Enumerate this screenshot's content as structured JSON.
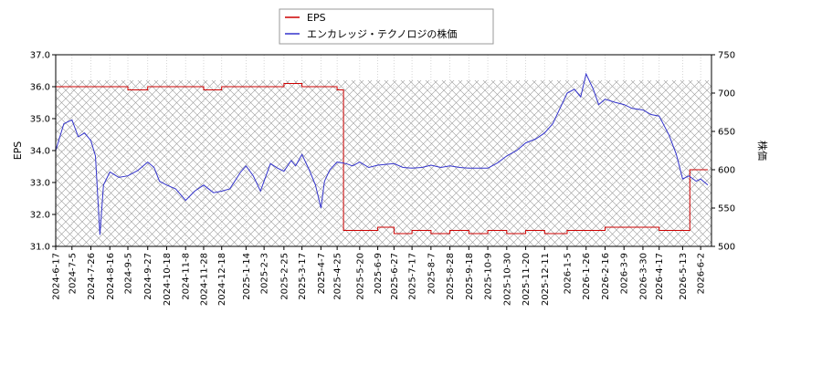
{
  "chart_data": {
    "type": "line",
    "title": "",
    "xlabel": "",
    "ylabel_left": "EPS",
    "ylabel_right": "株価",
    "ylim_left": [
      31.0,
      37.0
    ],
    "ylim_right": [
      500,
      750
    ],
    "yticks_left": [
      "31.0",
      "32.0",
      "33.0",
      "34.0",
      "35.0",
      "36.0",
      "37.0"
    ],
    "yticks_right": [
      "500",
      "550",
      "600",
      "650",
      "700",
      "750"
    ],
    "grid": true,
    "legend_position": "top-center",
    "x_ticks": [
      "2024-6-17",
      "2024-7-5",
      "2024-7-26",
      "2024-8-16",
      "2024-9-5",
      "2024-9-27",
      "2024-10-18",
      "2024-11-8",
      "2024-11-28",
      "2024-12-18",
      "2025-1-14",
      "2025-2-3",
      "2025-2-25",
      "2025-3-17",
      "2025-4-7",
      "2025-4-25",
      "2025-5-20",
      "2025-6-9",
      "2025-6-27",
      "2025-7-17",
      "2025-8-7",
      "2025-8-28",
      "2025-9-18",
      "2025-10-9",
      "2025-10-30",
      "2025-11-20",
      "2025-12-11",
      "2026-1-5",
      "2026-1-26",
      "2026-2-16",
      "2026-3-9",
      "2026-3-30",
      "2026-4-17",
      "2026-5-13",
      "2026-6-2"
    ],
    "series": [
      {
        "name": "EPS",
        "axis": "left",
        "color": "#cc0000",
        "points": [
          [
            "2024-6-17",
            36.0
          ],
          [
            "2024-7-5",
            36.0
          ],
          [
            "2024-7-26",
            36.0
          ],
          [
            "2024-8-16",
            36.0
          ],
          [
            "2024-9-5",
            35.9
          ],
          [
            "2024-9-27",
            36.0
          ],
          [
            "2024-10-18",
            36.0
          ],
          [
            "2024-11-8",
            36.0
          ],
          [
            "2024-11-28",
            35.9
          ],
          [
            "2024-12-18",
            36.0
          ],
          [
            "2025-1-14",
            36.0
          ],
          [
            "2025-2-3",
            36.0
          ],
          [
            "2025-2-25",
            36.1
          ],
          [
            "2025-3-17",
            36.0
          ],
          [
            "2025-4-7",
            36.0
          ],
          [
            "2025-4-25",
            35.9
          ],
          [
            "2025-5-1",
            35.9
          ],
          [
            "2025-5-2",
            31.5
          ],
          [
            "2025-5-20",
            31.5
          ],
          [
            "2025-6-9",
            31.6
          ],
          [
            "2025-6-27",
            31.4
          ],
          [
            "2025-7-17",
            31.5
          ],
          [
            "2025-8-7",
            31.4
          ],
          [
            "2025-8-28",
            31.5
          ],
          [
            "2025-9-18",
            31.4
          ],
          [
            "2025-10-9",
            31.5
          ],
          [
            "2025-10-30",
            31.4
          ],
          [
            "2025-11-20",
            31.5
          ],
          [
            "2025-12-11",
            31.4
          ],
          [
            "2026-1-5",
            31.5
          ],
          [
            "2026-1-26",
            31.5
          ],
          [
            "2026-2-16",
            31.6
          ],
          [
            "2026-3-9",
            31.6
          ],
          [
            "2026-3-30",
            31.6
          ],
          [
            "2026-4-17",
            31.5
          ],
          [
            "2026-5-13",
            31.5
          ],
          [
            "2026-5-20",
            31.5
          ],
          [
            "2026-5-21",
            33.4
          ],
          [
            "2026-6-2",
            33.4
          ],
          [
            "2026-6-10",
            33.4
          ]
        ]
      },
      {
        "name": "エンカレッジ・テクノロジの株価",
        "axis": "right",
        "color": "#3333cc",
        "points": [
          [
            "2024-6-17",
            625
          ],
          [
            "2024-6-26",
            660
          ],
          [
            "2024-7-5",
            665
          ],
          [
            "2024-7-12",
            643
          ],
          [
            "2024-7-19",
            648
          ],
          [
            "2024-7-26",
            638
          ],
          [
            "2024-7-31",
            618
          ],
          [
            "2024-8-5",
            515
          ],
          [
            "2024-8-9",
            580
          ],
          [
            "2024-8-16",
            597
          ],
          [
            "2024-8-26",
            590
          ],
          [
            "2024-9-5",
            592
          ],
          [
            "2024-9-16",
            599
          ],
          [
            "2024-9-27",
            610
          ],
          [
            "2024-10-4",
            603
          ],
          [
            "2024-10-10",
            585
          ],
          [
            "2024-10-18",
            580
          ],
          [
            "2024-10-28",
            575
          ],
          [
            "2024-11-8",
            560
          ],
          [
            "2024-11-18",
            572
          ],
          [
            "2024-11-28",
            580
          ],
          [
            "2024-12-9",
            570
          ],
          [
            "2024-12-18",
            572
          ],
          [
            "2024-12-27",
            575
          ],
          [
            "2025-1-8",
            597
          ],
          [
            "2025-1-14",
            605
          ],
          [
            "2025-1-22",
            592
          ],
          [
            "2025-1-30",
            572
          ],
          [
            "2025-2-3",
            585
          ],
          [
            "2025-2-10",
            608
          ],
          [
            "2025-2-18",
            602
          ],
          [
            "2025-2-25",
            598
          ],
          [
            "2025-3-5",
            612
          ],
          [
            "2025-3-10",
            605
          ],
          [
            "2025-3-17",
            620
          ],
          [
            "2025-3-25",
            600
          ],
          [
            "2025-4-1",
            580
          ],
          [
            "2025-4-7",
            550
          ],
          [
            "2025-4-11",
            585
          ],
          [
            "2025-4-17",
            600
          ],
          [
            "2025-4-25",
            610
          ],
          [
            "2025-5-5",
            608
          ],
          [
            "2025-5-12",
            605
          ],
          [
            "2025-5-20",
            610
          ],
          [
            "2025-5-30",
            603
          ],
          [
            "2025-6-9",
            606
          ],
          [
            "2025-6-18",
            607
          ],
          [
            "2025-6-27",
            608
          ],
          [
            "2025-7-7",
            603
          ],
          [
            "2025-7-17",
            602
          ],
          [
            "2025-7-28",
            603
          ],
          [
            "2025-8-7",
            606
          ],
          [
            "2025-8-18",
            603
          ],
          [
            "2025-8-28",
            605
          ],
          [
            "2025-9-8",
            603
          ],
          [
            "2025-9-18",
            602
          ],
          [
            "2025-9-29",
            602
          ],
          [
            "2025-10-9",
            602
          ],
          [
            "2025-10-20",
            609
          ],
          [
            "2025-10-30",
            618
          ],
          [
            "2025-11-10",
            625
          ],
          [
            "2025-11-20",
            635
          ],
          [
            "2025-12-1",
            640
          ],
          [
            "2025-12-11",
            648
          ],
          [
            "2025-12-20",
            660
          ],
          [
            "2026-1-5",
            700
          ],
          [
            "2026-1-13",
            705
          ],
          [
            "2026-1-20",
            695
          ],
          [
            "2026-1-26",
            725
          ],
          [
            "2026-2-3",
            705
          ],
          [
            "2026-2-9",
            685
          ],
          [
            "2026-2-16",
            692
          ],
          [
            "2026-2-27",
            688
          ],
          [
            "2026-3-9",
            685
          ],
          [
            "2026-3-18",
            680
          ],
          [
            "2026-3-30",
            678
          ],
          [
            "2026-4-8",
            672
          ],
          [
            "2026-4-17",
            670
          ],
          [
            "2026-4-28",
            645
          ],
          [
            "2026-5-6",
            620
          ],
          [
            "2026-5-13",
            588
          ],
          [
            "2026-5-20",
            592
          ],
          [
            "2026-5-28",
            585
          ],
          [
            "2026-6-2",
            588
          ],
          [
            "2026-6-10",
            580
          ]
        ]
      }
    ]
  }
}
